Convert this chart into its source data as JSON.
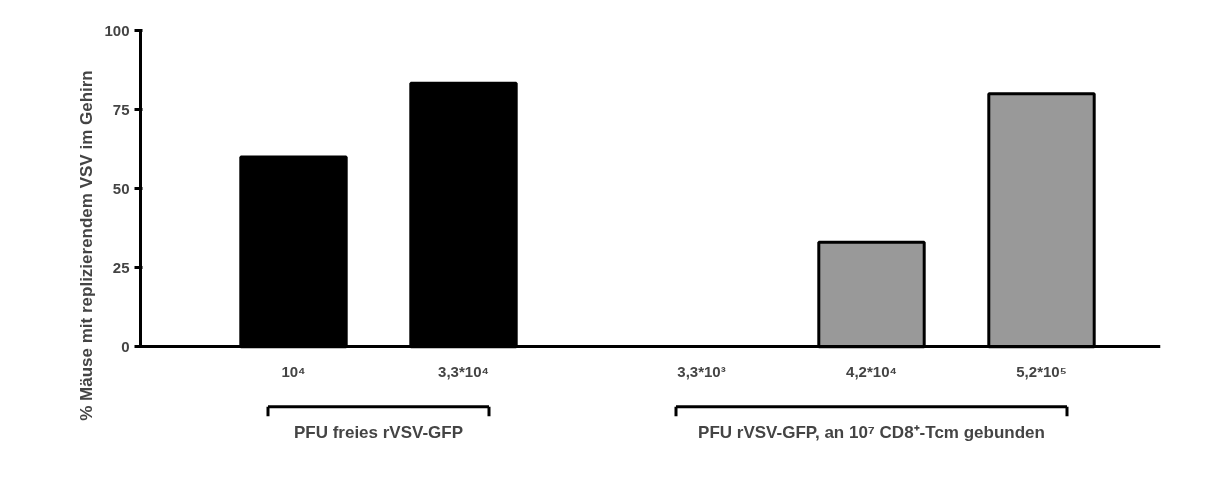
{
  "chart_data": {
    "type": "bar",
    "ylabel": "% Mäuse mit replizierendem VSV im Gehirn",
    "categories": [
      "10⁴",
      "3,3*10⁴",
      "3,3*10³",
      "4,2*10⁴",
      "5,2*10⁵"
    ],
    "values": [
      60,
      83.3,
      0,
      33,
      80
    ],
    "colors": [
      "#000000",
      "#000000",
      "#999999",
      "#999999",
      "#999999"
    ],
    "ylim": [
      0,
      100
    ],
    "yticks": [
      0,
      25,
      50,
      75,
      100
    ],
    "grid": false,
    "annotations": [
      "PFU freies rVSV-GFP",
      "PFU rVSV-GFP, an 10⁷ CD8⁺-Tcm gebunden"
    ]
  }
}
